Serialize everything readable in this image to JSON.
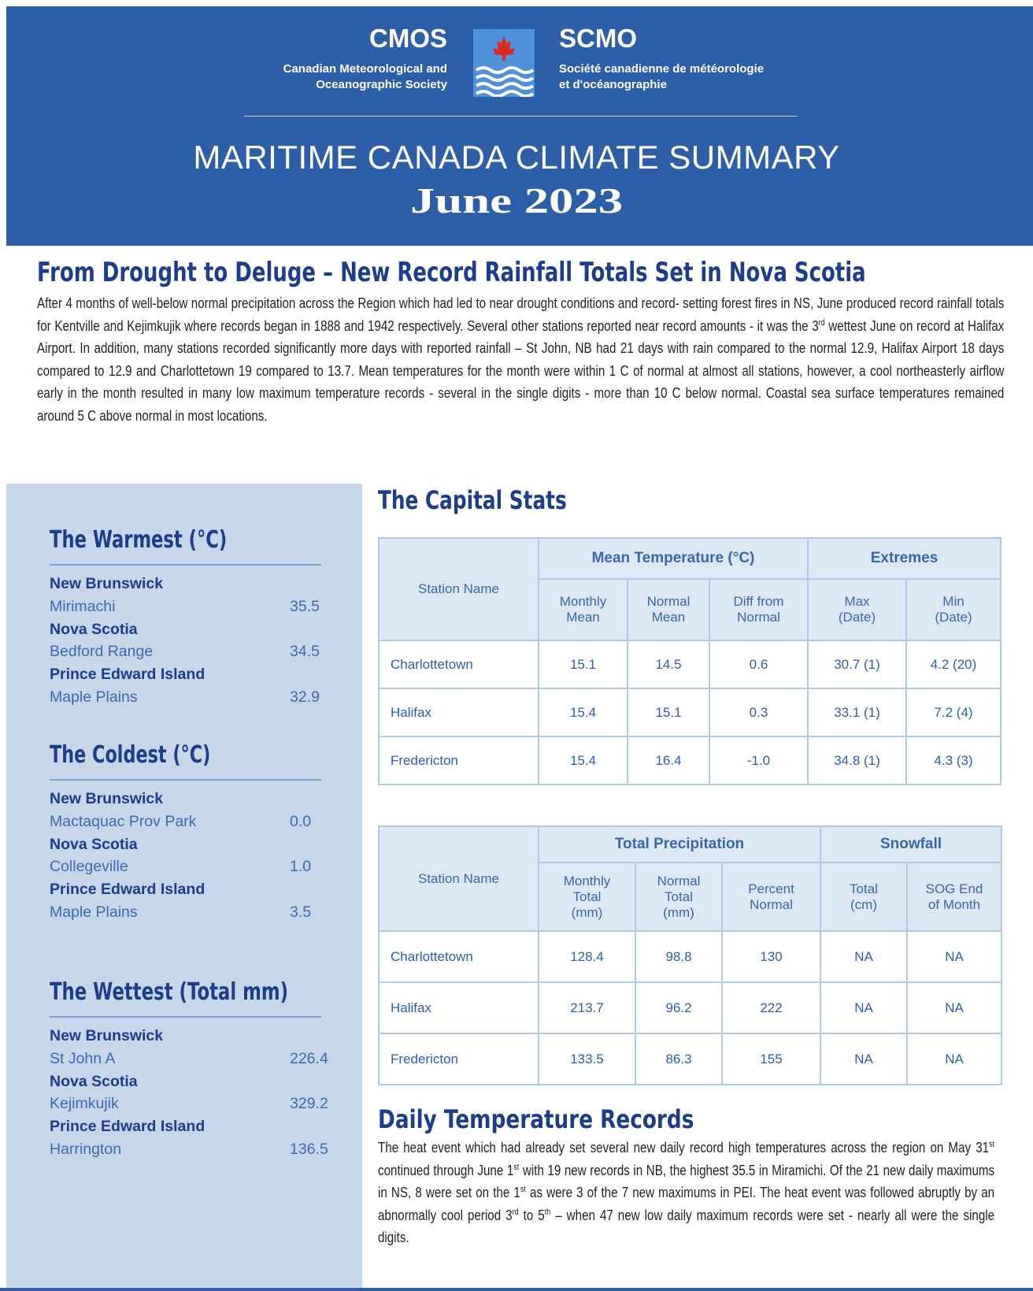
{
  "header": {
    "org_en": {
      "abbr": "CMOS",
      "name": [
        "Canadian Meteorological and",
        "Oceanographic Society"
      ]
    },
    "org_fr": {
      "abbr": "SCMO",
      "name": [
        "Société canadienne de météorologie",
        "et d'océanographie"
      ]
    },
    "title": "MARITIME CANADA CLIMATE SUMMARY",
    "subtitle": "June 2023"
  },
  "intro": {
    "heading": "From Drought to Deluge – New Record Rainfall Totals Set in Nova Scotia",
    "runs": [
      {
        "text": "After 4 months of well-below normal precipitation across the Region which had led to near drought conditions and record- setting forest fires in NS, June produced record rainfall totals for Kentville and Kejimkujik where records began in 1888 and 1942 respectively. Several other stations reported near record amounts - it was the 3"
      },
      {
        "sup": "rd"
      },
      {
        "text": " wettest June on record at Halifax Airport. In addition, many stations recorded significantly more days with reported rainfall – St John, NB had 21 days with rain compared to the normal 12.9, Halifax Airport 18 days compared to 12.9 and Charlottetown 19 compared to 13.7. Mean temperatures for the month were within 1 C of normal at almost all stations, however, a cool northeasterly airflow early in the month resulted in many low maximum temperature records - several in the single digits - more than 10 C below normal. Coastal sea surface temperatures remained around 5 C above normal in most locations."
      }
    ]
  },
  "sidebar": [
    {
      "heading": "The Warmest (°C)",
      "entries": [
        {
          "province": "New Brunswick",
          "station": "Mirimachi",
          "value": "35.5"
        },
        {
          "province": "Nova Scotia",
          "station": "Bedford Range",
          "value": "34.5"
        },
        {
          "province": "Prince Edward Island",
          "station": "Maple Plains",
          "value": "32.9"
        }
      ]
    },
    {
      "heading": "The Coldest (°C)",
      "entries": [
        {
          "province": "New Brunswick",
          "station": "Mactaquac Prov Park",
          "value": "0.0"
        },
        {
          "province": "Nova Scotia",
          "station": "Collegeville",
          "value": "1.0"
        },
        {
          "province": "Prince Edward Island",
          "station": "Maple Plains",
          "value": "3.5"
        }
      ]
    },
    {
      "heading": "The Wettest (Total mm)",
      "entries": [
        {
          "province": "New Brunswick",
          "station": "St John A",
          "value": "226.4"
        },
        {
          "province": "Nova Scotia",
          "station": "Kejimkujik",
          "value": "329.2"
        },
        {
          "province": "Prince Edward Island",
          "station": "Harrington",
          "value": "136.5"
        }
      ]
    }
  ],
  "capital_stats": {
    "heading": "The Capital Stats",
    "temperature_table": {
      "groups": [
        "Mean Temperature (°C)",
        "Extremes"
      ],
      "columns": [
        [
          "Station Name"
        ],
        [
          "Monthly",
          "Mean"
        ],
        [
          "Normal",
          "Mean"
        ],
        [
          "Diff from",
          "Normal"
        ],
        [
          "Max",
          "(Date)"
        ],
        [
          "Min",
          "(Date)"
        ]
      ],
      "rows": [
        [
          "Charlottetown",
          "15.1",
          "14.5",
          "0.6",
          "30.7 (1)",
          "4.2 (20)"
        ],
        [
          "Halifax",
          "15.4",
          "15.1",
          "0.3",
          "33.1 (1)",
          "7.2 (4)"
        ],
        [
          "Fredericton",
          "15.4",
          "16.4",
          "-1.0",
          "34.8 (1)",
          "4.3 (3)"
        ]
      ]
    },
    "precipitation_table": {
      "groups": [
        "Total Precipitation",
        "Snowfall"
      ],
      "columns": [
        [
          "Station Name"
        ],
        [
          "Monthly",
          "Total",
          "(mm)"
        ],
        [
          "Normal",
          "Total",
          "(mm)"
        ],
        [
          "Percent",
          "Normal"
        ],
        [
          "Total",
          "(cm)"
        ],
        [
          "SOG End",
          "of Month"
        ]
      ],
      "rows": [
        [
          "Charlottetown",
          "128.4",
          "98.8",
          "130",
          "NA",
          "NA"
        ],
        [
          "Halifax",
          "213.7",
          "96.2",
          "222",
          "NA",
          "NA"
        ],
        [
          "Fredericton",
          "133.5",
          "86.3",
          "155",
          "NA",
          "NA"
        ]
      ]
    }
  },
  "daily_records": {
    "heading": "Daily Temperature Records",
    "runs": [
      {
        "text": "The heat event which had already set several new daily record high temperatures across the region on May 31"
      },
      {
        "sup": "st"
      },
      {
        "text": " continued through June 1"
      },
      {
        "sup": "st"
      },
      {
        "text": " with 19 new records in NB, the highest 35.5 in Miramichi. Of the 21 new daily maximums in NS, 8 were set on the 1"
      },
      {
        "sup": "st"
      },
      {
        "text": " as were 3 of the 7 new maximums in PEI. The heat event was followed abruptly by an abnormally cool period 3"
      },
      {
        "sup": "rd"
      },
      {
        "text": " to 5"
      },
      {
        "sup": "th"
      },
      {
        "text": " – when 47 new low daily maximum records were set - nearly all were the single digits."
      }
    ]
  }
}
